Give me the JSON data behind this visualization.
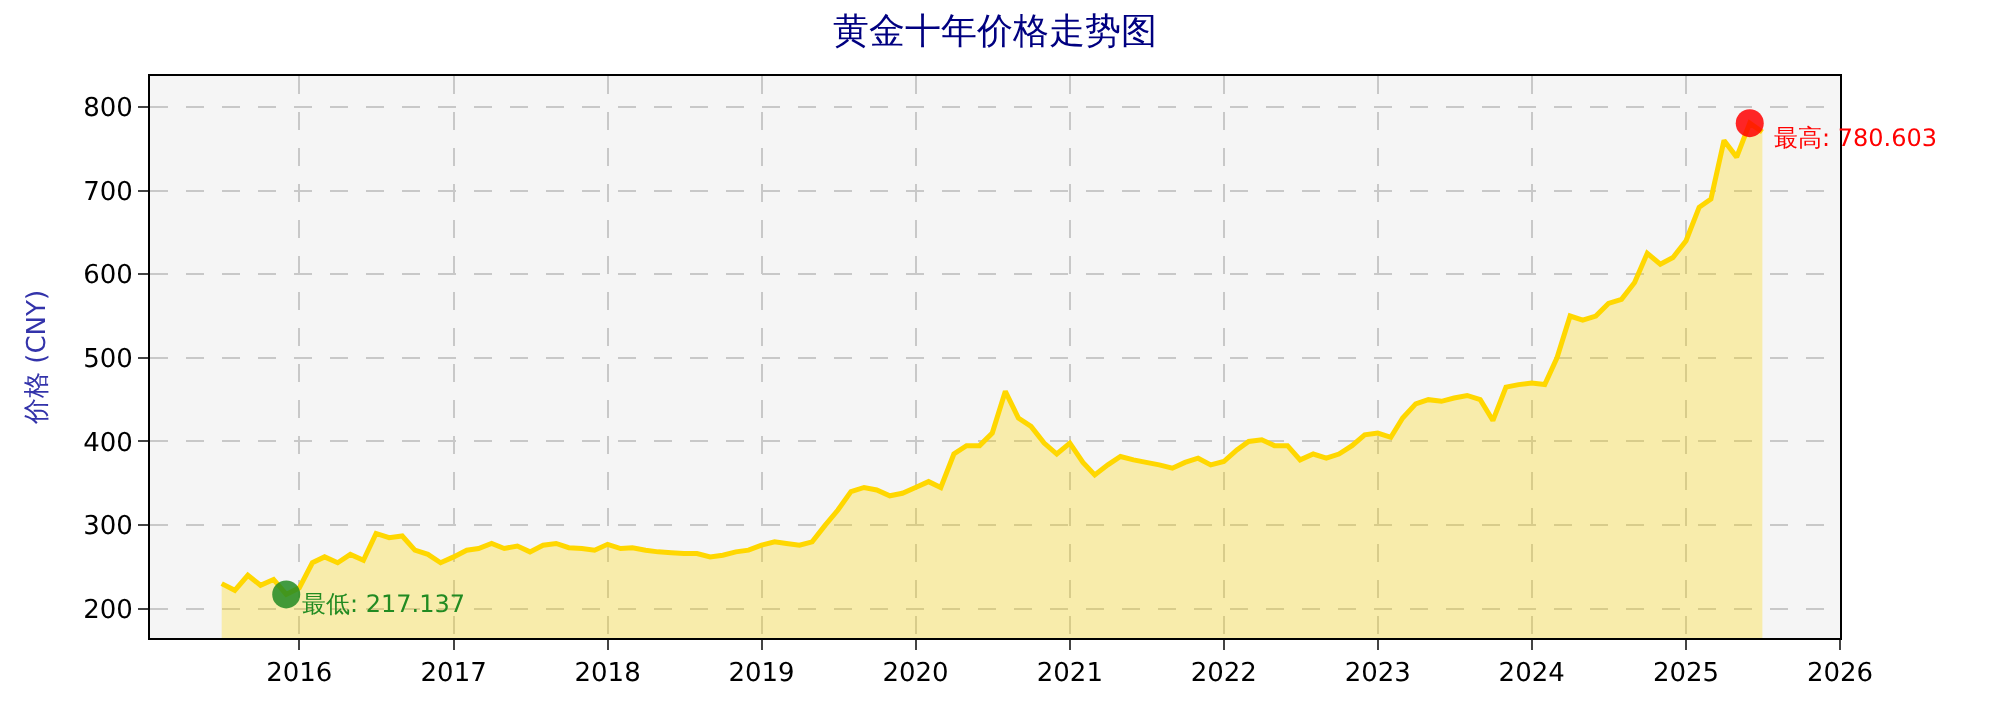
{
  "chart_data": {
    "type": "area",
    "title": "黄金十年价格走势图",
    "ylabel": "价格 (CNY)",
    "xlim": [
      "2015-01-12",
      "2026-01-01"
    ],
    "xticks": [
      {
        "value": "2016-01-01",
        "label": "2016"
      },
      {
        "value": "2017-01-01",
        "label": "2017"
      },
      {
        "value": "2018-01-01",
        "label": "2018"
      },
      {
        "value": "2019-01-01",
        "label": "2019"
      },
      {
        "value": "2020-01-01",
        "label": "2020"
      },
      {
        "value": "2021-01-01",
        "label": "2021"
      },
      {
        "value": "2022-01-01",
        "label": "2022"
      },
      {
        "value": "2023-01-01",
        "label": "2023"
      },
      {
        "value": "2024-01-01",
        "label": "2024"
      },
      {
        "value": "2025-01-01",
        "label": "2025"
      },
      {
        "value": "2026-01-01",
        "label": "2026"
      }
    ],
    "ylim": [
      165,
      837
    ],
    "yticks": [
      200,
      300,
      400,
      500,
      600,
      700,
      800
    ],
    "grid": true,
    "series": [
      {
        "color": "#ffd700",
        "x": [
          "2015-07",
          "2015-08",
          "2015-09",
          "2015-10",
          "2015-11",
          "2015-12",
          "2016-01",
          "2016-02",
          "2016-03",
          "2016-04",
          "2016-05",
          "2016-06",
          "2016-07",
          "2016-08",
          "2016-09",
          "2016-10",
          "2016-11",
          "2016-12",
          "2017-01",
          "2017-02",
          "2017-03",
          "2017-04",
          "2017-05",
          "2017-06",
          "2017-07",
          "2017-08",
          "2017-09",
          "2017-10",
          "2017-11",
          "2017-12",
          "2018-01",
          "2018-02",
          "2018-03",
          "2018-04",
          "2018-05",
          "2018-06",
          "2018-07",
          "2018-08",
          "2018-09",
          "2018-10",
          "2018-11",
          "2018-12",
          "2019-01",
          "2019-02",
          "2019-03",
          "2019-04",
          "2019-05",
          "2019-06",
          "2019-07",
          "2019-08",
          "2019-09",
          "2019-10",
          "2019-11",
          "2019-12",
          "2020-01",
          "2020-02",
          "2020-03",
          "2020-04",
          "2020-05",
          "2020-06",
          "2020-07",
          "2020-08",
          "2020-09",
          "2020-10",
          "2020-11",
          "2020-12",
          "2021-01",
          "2021-02",
          "2021-03",
          "2021-04",
          "2021-05",
          "2021-06",
          "2021-07",
          "2021-08",
          "2021-09",
          "2021-10",
          "2021-11",
          "2021-12",
          "2022-01",
          "2022-02",
          "2022-03",
          "2022-04",
          "2022-05",
          "2022-06",
          "2022-07",
          "2022-08",
          "2022-09",
          "2022-10",
          "2022-11",
          "2022-12",
          "2023-01",
          "2023-02",
          "2023-03",
          "2023-04",
          "2023-05",
          "2023-06",
          "2023-07",
          "2023-08",
          "2023-09",
          "2023-10",
          "2023-11",
          "2023-12",
          "2024-01",
          "2024-02",
          "2024-03",
          "2024-04",
          "2024-05",
          "2024-06",
          "2024-07",
          "2024-08",
          "2024-09",
          "2024-10",
          "2024-11",
          "2024-12",
          "2025-01",
          "2025-02",
          "2025-03",
          "2025-04",
          "2025-05",
          "2025-06",
          "2025-07"
        ],
        "values": [
          230,
          222,
          240,
          228,
          235,
          217.137,
          225,
          255,
          262,
          255,
          265,
          258,
          290,
          285,
          287,
          270,
          265,
          255,
          262,
          270,
          272,
          278,
          272,
          275,
          268,
          276,
          278,
          273,
          272,
          270,
          277,
          272,
          273,
          270,
          268,
          267,
          266,
          266,
          262,
          264,
          268,
          270,
          276,
          280,
          278,
          276,
          280,
          300,
          318,
          340,
          345,
          342,
          335,
          338,
          345,
          352,
          345,
          385,
          395,
          395,
          410,
          460,
          428,
          418,
          398,
          385,
          398,
          375,
          360,
          372,
          382,
          378,
          375,
          372,
          368,
          375,
          380,
          372,
          376,
          390,
          400,
          402,
          395,
          395,
          378,
          385,
          380,
          385,
          395,
          408,
          410,
          405,
          428,
          445,
          450,
          448,
          452,
          455,
          450,
          425,
          465,
          468,
          470,
          468,
          500,
          550,
          545,
          550,
          565,
          570,
          590,
          625,
          612,
          620,
          640,
          680,
          690,
          760,
          740,
          780.603,
          770
        ]
      },
      {
        "type": "scatter",
        "color": "#228b22",
        "x": [
          "2015-12"
        ],
        "values": [
          217.137
        ]
      },
      {
        "type": "scatter",
        "color": "#ff0000",
        "x": [
          "2025-06"
        ],
        "values": [
          780.603
        ]
      }
    ],
    "annotations": [
      {
        "text": "最低: 217.137",
        "x": "2015-12",
        "y": 217.137
      },
      {
        "text": "最高: 780.603",
        "x": "2025-06",
        "y": 780.603
      }
    ]
  }
}
